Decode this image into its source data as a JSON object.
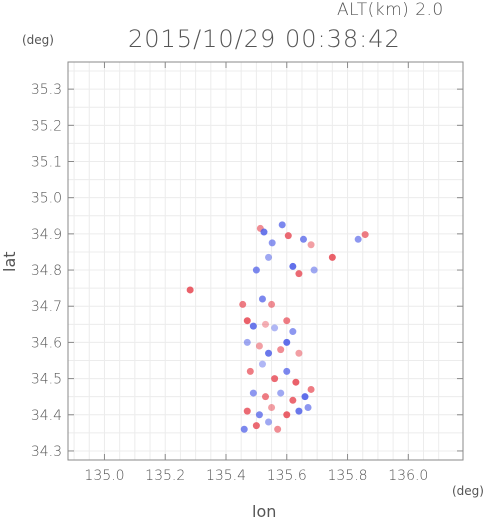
{
  "header": {
    "altitude_label": "ALT(km) 2.0",
    "timestamp": "2015/10/29 00:38:42"
  },
  "chart_data": {
    "type": "heatmap",
    "xlabel": "lon",
    "ylabel": "lat",
    "xunit": "(deg)",
    "yunit": "(deg)",
    "xlim": [
      134.88,
      136.18
    ],
    "ylim": [
      34.275,
      35.375
    ],
    "xticks": [
      135.0,
      135.2,
      135.4,
      135.6,
      135.8,
      136.0
    ],
    "xtick_labels": [
      "135.0",
      "135.2",
      "135.4",
      "135.6",
      "135.8",
      "136.0"
    ],
    "yticks": [
      34.3,
      34.4,
      34.5,
      34.6,
      34.7,
      34.8,
      34.9,
      35.0,
      35.1,
      35.2,
      35.3
    ],
    "ytick_labels": [
      "34.3",
      "34.4",
      "34.5",
      "34.6",
      "34.7",
      "34.8",
      "34.9",
      "35.0",
      "35.1",
      "35.2",
      "35.3"
    ],
    "colors": {
      "positive": "#e8505a",
      "negative": "#5060e8",
      "neutral": "#f0e8f0"
    },
    "points": [
      {
        "lon": 135.513,
        "lat": 34.915,
        "v": 0.4
      },
      {
        "lon": 135.525,
        "lat": 34.905,
        "v": -0.6
      },
      {
        "lon": 135.585,
        "lat": 34.925,
        "v": -0.5
      },
      {
        "lon": 135.605,
        "lat": 34.895,
        "v": 0.6
      },
      {
        "lon": 135.552,
        "lat": 34.875,
        "v": -0.4
      },
      {
        "lon": 135.655,
        "lat": 34.885,
        "v": -0.5
      },
      {
        "lon": 135.68,
        "lat": 34.87,
        "v": 0.3
      },
      {
        "lon": 135.835,
        "lat": 34.885,
        "v": -0.4
      },
      {
        "lon": 135.858,
        "lat": 34.898,
        "v": 0.5
      },
      {
        "lon": 135.62,
        "lat": 34.81,
        "v": -0.7
      },
      {
        "lon": 135.64,
        "lat": 34.79,
        "v": 0.6
      },
      {
        "lon": 135.69,
        "lat": 34.8,
        "v": -0.3
      },
      {
        "lon": 135.5,
        "lat": 34.8,
        "v": -0.5
      },
      {
        "lon": 135.54,
        "lat": 34.835,
        "v": -0.3
      },
      {
        "lon": 135.75,
        "lat": 34.835,
        "v": 0.7
      },
      {
        "lon": 135.282,
        "lat": 34.745,
        "v": 0.8
      },
      {
        "lon": 135.455,
        "lat": 34.705,
        "v": 0.5
      },
      {
        "lon": 135.52,
        "lat": 34.72,
        "v": -0.5
      },
      {
        "lon": 135.55,
        "lat": 34.705,
        "v": 0.4
      },
      {
        "lon": 135.47,
        "lat": 34.66,
        "v": 0.7
      },
      {
        "lon": 135.49,
        "lat": 34.645,
        "v": -0.6
      },
      {
        "lon": 135.53,
        "lat": 34.65,
        "v": 0.2
      },
      {
        "lon": 135.56,
        "lat": 34.64,
        "v": -0.2
      },
      {
        "lon": 135.6,
        "lat": 34.66,
        "v": 0.5
      },
      {
        "lon": 135.62,
        "lat": 34.63,
        "v": -0.4
      },
      {
        "lon": 135.47,
        "lat": 34.6,
        "v": -0.3
      },
      {
        "lon": 135.51,
        "lat": 34.59,
        "v": 0.3
      },
      {
        "lon": 135.54,
        "lat": 34.57,
        "v": -0.6
      },
      {
        "lon": 135.58,
        "lat": 34.58,
        "v": 0.4
      },
      {
        "lon": 135.6,
        "lat": 34.6,
        "v": -0.7
      },
      {
        "lon": 135.64,
        "lat": 34.57,
        "v": 0.3
      },
      {
        "lon": 135.48,
        "lat": 34.52,
        "v": 0.5
      },
      {
        "lon": 135.52,
        "lat": 34.54,
        "v": -0.2
      },
      {
        "lon": 135.56,
        "lat": 34.5,
        "v": 0.6
      },
      {
        "lon": 135.6,
        "lat": 34.52,
        "v": -0.5
      },
      {
        "lon": 135.63,
        "lat": 34.49,
        "v": 0.7
      },
      {
        "lon": 135.49,
        "lat": 34.46,
        "v": -0.4
      },
      {
        "lon": 135.53,
        "lat": 34.45,
        "v": 0.5
      },
      {
        "lon": 135.58,
        "lat": 34.46,
        "v": -0.3
      },
      {
        "lon": 135.62,
        "lat": 34.44,
        "v": 0.6
      },
      {
        "lon": 135.66,
        "lat": 34.45,
        "v": -0.7
      },
      {
        "lon": 135.68,
        "lat": 34.47,
        "v": 0.5
      },
      {
        "lon": 135.47,
        "lat": 34.41,
        "v": 0.6
      },
      {
        "lon": 135.51,
        "lat": 34.4,
        "v": -0.5
      },
      {
        "lon": 135.55,
        "lat": 34.42,
        "v": 0.3
      },
      {
        "lon": 135.6,
        "lat": 34.4,
        "v": 0.7
      },
      {
        "lon": 135.64,
        "lat": 34.41,
        "v": -0.6
      },
      {
        "lon": 135.67,
        "lat": 34.42,
        "v": -0.4
      },
      {
        "lon": 135.46,
        "lat": 34.36,
        "v": -0.5
      },
      {
        "lon": 135.5,
        "lat": 34.37,
        "v": 0.6
      },
      {
        "lon": 135.54,
        "lat": 34.38,
        "v": -0.3
      },
      {
        "lon": 135.57,
        "lat": 34.36,
        "v": 0.4
      }
    ]
  }
}
